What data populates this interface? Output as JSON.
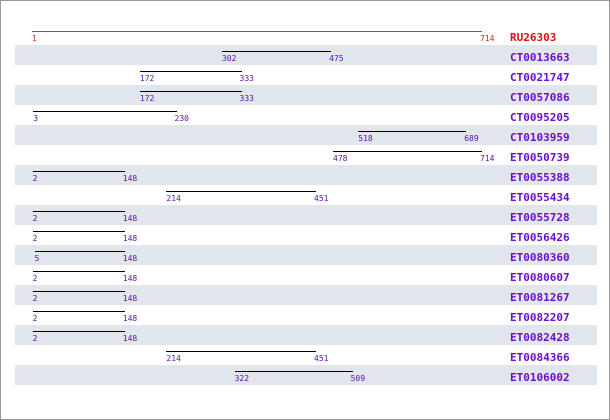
{
  "colors": {
    "reference": "#dd1010",
    "label": "#6a0fd0",
    "number": "#5a0fb0",
    "row_shade": "#e1e6ec"
  },
  "scale": {
    "min": 1,
    "max": 714
  },
  "reference": {
    "name": "RU26303",
    "start": "1",
    "end": "714"
  },
  "alignments": [
    {
      "name": "CT0013663",
      "start": "302",
      "end": "475"
    },
    {
      "name": "CT0021747",
      "start": "172",
      "end": "333"
    },
    {
      "name": "CT0057086",
      "start": "172",
      "end": "333"
    },
    {
      "name": "CT0095205",
      "start": "3",
      "end": "230"
    },
    {
      "name": "CT0103959",
      "start": "518",
      "end": "689"
    },
    {
      "name": "ET0050739",
      "start": "478",
      "end": "714"
    },
    {
      "name": "ET0055388",
      "start": "2",
      "end": "148"
    },
    {
      "name": "ET0055434",
      "start": "214",
      "end": "451"
    },
    {
      "name": "ET0055728",
      "start": "2",
      "end": "148"
    },
    {
      "name": "ET0056426",
      "start": "2",
      "end": "148"
    },
    {
      "name": "ET0080360",
      "start": "5",
      "end": "148"
    },
    {
      "name": "ET0080607",
      "start": "2",
      "end": "148"
    },
    {
      "name": "ET0081267",
      "start": "2",
      "end": "148"
    },
    {
      "name": "ET0082207",
      "start": "2",
      "end": "148"
    },
    {
      "name": "ET0082428",
      "start": "2",
      "end": "148"
    },
    {
      "name": "ET0084366",
      "start": "214",
      "end": "451"
    },
    {
      "name": "ET0106002",
      "start": "322",
      "end": "509"
    }
  ]
}
